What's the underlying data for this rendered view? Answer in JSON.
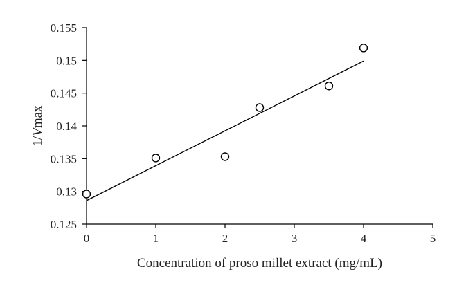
{
  "chart_data": {
    "type": "scatter",
    "title": "",
    "xlabel": "Concentration of proso millet extract (mg/mL)",
    "ylabel_prefix": "1/",
    "ylabel_var": "V",
    "ylabel_suffix": "max",
    "xlim": [
      0,
      5
    ],
    "ylim": [
      0.125,
      0.155
    ],
    "xticks": [
      "0",
      "1",
      "2",
      "3",
      "4",
      "5"
    ],
    "yticks": [
      "0.125",
      "0.13",
      "0.135",
      "0.14",
      "0.145",
      "0.15",
      "0.155"
    ],
    "grid": false,
    "legend": "none",
    "points": [
      {
        "x": 0,
        "y": 0.1296
      },
      {
        "x": 1,
        "y": 0.1351
      },
      {
        "x": 2,
        "y": 0.1353
      },
      {
        "x": 2.5,
        "y": 0.1428
      },
      {
        "x": 3.5,
        "y": 0.1461
      },
      {
        "x": 4,
        "y": 0.1519
      }
    ],
    "trendline": {
      "type": "linear",
      "x_start": 0,
      "x_end": 4,
      "y_start": 0.1286,
      "y_end": 0.1499
    }
  }
}
